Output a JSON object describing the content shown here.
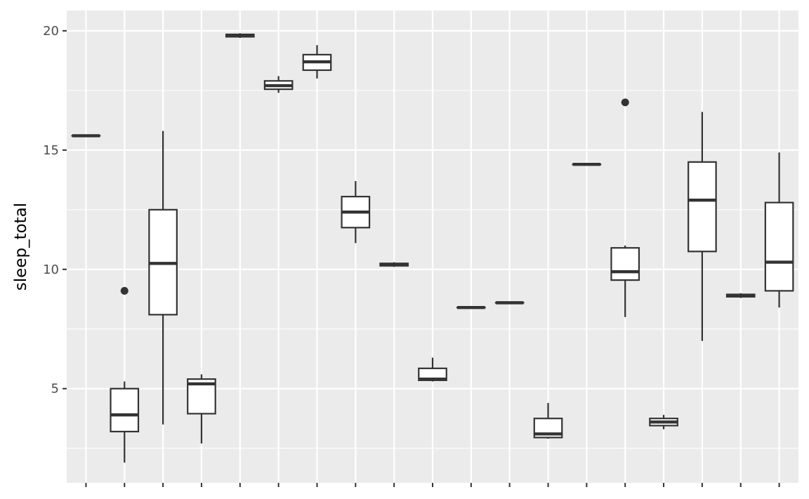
{
  "chart_data": {
    "type": "boxplot",
    "title": "",
    "xlabel": "",
    "ylabel": "sleep_total",
    "y_ticks": [
      5,
      10,
      15,
      20
    ],
    "ylim": [
      1.05,
      20.85
    ],
    "grid": true,
    "panel_background": "#ebebeb",
    "grid_color": "#ffffff",
    "box_fill": "#ffffff",
    "line_color": "#333333",
    "groups": [
      {
        "min": 15.6,
        "q1": 15.6,
        "median": 15.6,
        "q3": 15.6,
        "max": 15.6,
        "outliers": []
      },
      {
        "min": 1.9,
        "q1": 3.2,
        "median": 3.9,
        "q3": 5.0,
        "max": 5.3,
        "outliers": [
          9.1
        ]
      },
      {
        "min": 3.5,
        "q1": 8.1,
        "median": 10.25,
        "q3": 12.5,
        "max": 15.8,
        "outliers": []
      },
      {
        "min": 2.7,
        "q1": 3.95,
        "median": 5.2,
        "q3": 5.4,
        "max": 5.6,
        "outliers": []
      },
      {
        "min": 19.7,
        "q1": 19.75,
        "median": 19.8,
        "q3": 19.85,
        "max": 19.9,
        "outliers": []
      },
      {
        "min": 17.4,
        "q1": 17.55,
        "median": 17.7,
        "q3": 17.9,
        "max": 18.1,
        "outliers": []
      },
      {
        "min": 18.0,
        "q1": 18.35,
        "median": 18.7,
        "q3": 19.0,
        "max": 19.4,
        "outliers": []
      },
      {
        "min": 11.1,
        "q1": 11.75,
        "median": 12.4,
        "q3": 13.05,
        "max": 13.7,
        "outliers": []
      },
      {
        "min": 10.1,
        "q1": 10.15,
        "median": 10.2,
        "q3": 10.25,
        "max": 10.3,
        "outliers": []
      },
      {
        "min": 5.3,
        "q1": 5.35,
        "median": 5.4,
        "q3": 5.85,
        "max": 6.3,
        "outliers": []
      },
      {
        "min": 8.4,
        "q1": 8.4,
        "median": 8.4,
        "q3": 8.4,
        "max": 8.4,
        "outliers": []
      },
      {
        "min": 8.6,
        "q1": 8.6,
        "median": 8.6,
        "q3": 8.6,
        "max": 8.6,
        "outliers": []
      },
      {
        "min": 2.9,
        "q1": 2.95,
        "median": 3.1,
        "q3": 3.75,
        "max": 4.4,
        "outliers": []
      },
      {
        "min": 14.4,
        "q1": 14.4,
        "median": 14.4,
        "q3": 14.4,
        "max": 14.4,
        "outliers": []
      },
      {
        "min": 8.0,
        "q1": 9.55,
        "median": 9.9,
        "q3": 10.9,
        "max": 11.0,
        "outliers": [
          17.0
        ]
      },
      {
        "min": 3.3,
        "q1": 3.45,
        "median": 3.6,
        "q3": 3.75,
        "max": 3.9,
        "outliers": []
      },
      {
        "min": 7.0,
        "q1": 10.75,
        "median": 12.9,
        "q3": 14.5,
        "max": 16.6,
        "outliers": []
      },
      {
        "min": 8.8,
        "q1": 8.85,
        "median": 8.9,
        "q3": 8.95,
        "max": 9.0,
        "outliers": []
      },
      {
        "min": 8.4,
        "q1": 9.1,
        "median": 10.3,
        "q3": 12.8,
        "max": 14.9,
        "outliers": []
      }
    ]
  }
}
